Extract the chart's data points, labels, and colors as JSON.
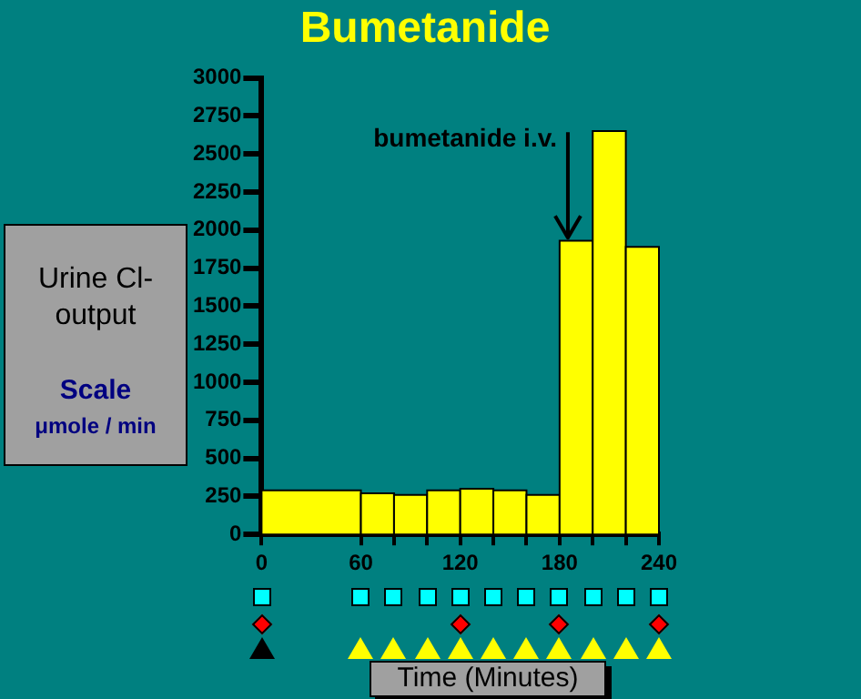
{
  "chart_data": {
    "type": "histogram",
    "title": "Bumetanide",
    "xlabel": "Time (Minutes)",
    "ylabel": "Urine Cl- output",
    "annotations": [
      "Scale",
      "μmole / min",
      {
        "text": "bumetanide i.v.",
        "x": 185,
        "y": 1950
      }
    ],
    "bins": [
      0,
      60,
      80,
      100,
      120,
      140,
      160,
      180,
      200,
      220,
      240
    ],
    "values": [
      290,
      270,
      260,
      290,
      300,
      290,
      260,
      1930,
      2650,
      1890
    ],
    "color": "#ffff00",
    "xlim": [
      0,
      240
    ],
    "xticks": [
      0,
      60,
      {
        "value": 80,
        "label": null
      },
      {
        "value": 100,
        "label": null
      },
      120,
      {
        "value": 140,
        "label": null
      },
      {
        "value": 160,
        "label": null
      },
      180,
      {
        "value": 200,
        "label": null
      },
      {
        "value": 220,
        "label": null
      },
      240
    ],
    "ylim": [
      0,
      3000
    ],
    "yticks": [
      0,
      250,
      500,
      750,
      1000,
      1250,
      1500,
      1750,
      2000,
      2250,
      2500,
      2750,
      3000
    ],
    "grid": false
  }
}
